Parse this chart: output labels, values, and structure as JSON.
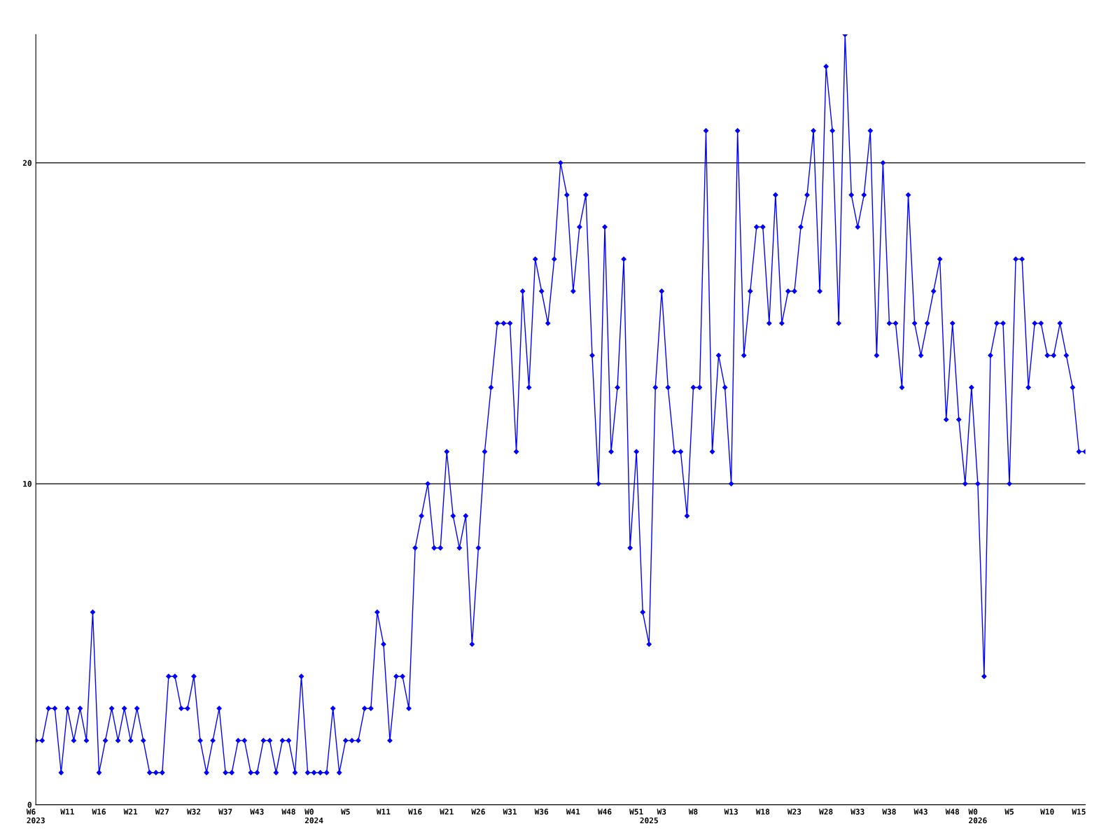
{
  "chart_data": {
    "type": "line",
    "categories": [
      "W6\n2023",
      null,
      null,
      null,
      null,
      "W11",
      null,
      null,
      null,
      null,
      "W16",
      null,
      null,
      null,
      null,
      "W21",
      null,
      null,
      null,
      null,
      "W27",
      null,
      null,
      null,
      null,
      "W32",
      null,
      null,
      null,
      null,
      "W37",
      null,
      null,
      null,
      null,
      "W43",
      null,
      null,
      null,
      null,
      "W48",
      null,
      null,
      null,
      "W0\n2024",
      null,
      null,
      null,
      null,
      "W5",
      null,
      null,
      null,
      null,
      null,
      "W11",
      null,
      null,
      null,
      null,
      "W16",
      null,
      null,
      null,
      null,
      "W21",
      null,
      null,
      null,
      null,
      "W26",
      null,
      null,
      null,
      null,
      "W31",
      null,
      null,
      null,
      null,
      "W36",
      null,
      null,
      null,
      null,
      "W41",
      null,
      null,
      null,
      null,
      "W46",
      null,
      null,
      null,
      null,
      "W51",
      null,
      "\n2025",
      null,
      "W3",
      null,
      null,
      null,
      null,
      "W8",
      null,
      null,
      null,
      null,
      null,
      "W13",
      null,
      null,
      null,
      null,
      "W18",
      null,
      null,
      null,
      null,
      "W23",
      null,
      null,
      null,
      null,
      "W28",
      null,
      null,
      null,
      null,
      "W33",
      null,
      null,
      null,
      null,
      "W38",
      null,
      null,
      null,
      null,
      "W43",
      null,
      null,
      null,
      null,
      "W48",
      null,
      null,
      null,
      "W0\n2026",
      null,
      null,
      null,
      null,
      "W5",
      null,
      null,
      null,
      null,
      null,
      "W10",
      null,
      null,
      null,
      null,
      "W15",
      null
    ],
    "series": [
      {
        "color": "#0000ff",
        "values": [
          2,
          2,
          3,
          3,
          1,
          3,
          2,
          3,
          2,
          6,
          1,
          2,
          3,
          2,
          3,
          2,
          3,
          2,
          1,
          1,
          1,
          4,
          4,
          3,
          3,
          4,
          2,
          1,
          2,
          3,
          1,
          1,
          2,
          2,
          1,
          1,
          2,
          2,
          1,
          2,
          2,
          1,
          4,
          1,
          1,
          1,
          1,
          3,
          1,
          2,
          2,
          2,
          3,
          3,
          6,
          5,
          2,
          4,
          4,
          3,
          8,
          9,
          10,
          8,
          8,
          11,
          9,
          8,
          9,
          5,
          8,
          11,
          13,
          15,
          15,
          15,
          11,
          16,
          13,
          17,
          16,
          15,
          17,
          20,
          19,
          16,
          18,
          19,
          14,
          10,
          18,
          11,
          13,
          17,
          8,
          11,
          6,
          5,
          13,
          16,
          13,
          11,
          11,
          9,
          13,
          13,
          21,
          11,
          14,
          13,
          10,
          21,
          14,
          16,
          18,
          18,
          15,
          19,
          15,
          16,
          16,
          18,
          19,
          21,
          16,
          23,
          21,
          15,
          24,
          19,
          18,
          19,
          21,
          14,
          20,
          15,
          15,
          13,
          19,
          15,
          14,
          15,
          16,
          17,
          12,
          15,
          12,
          10,
          13,
          10,
          4,
          14,
          15,
          15,
          10,
          17,
          17,
          13,
          15,
          15,
          14,
          14,
          15,
          14,
          13,
          11,
          11
        ]
      }
    ],
    "ylim": [
      0,
      24
    ],
    "yticks": [
      0,
      10,
      20
    ],
    "grid": "y",
    "marker": "diamond",
    "line_style": "solid"
  }
}
